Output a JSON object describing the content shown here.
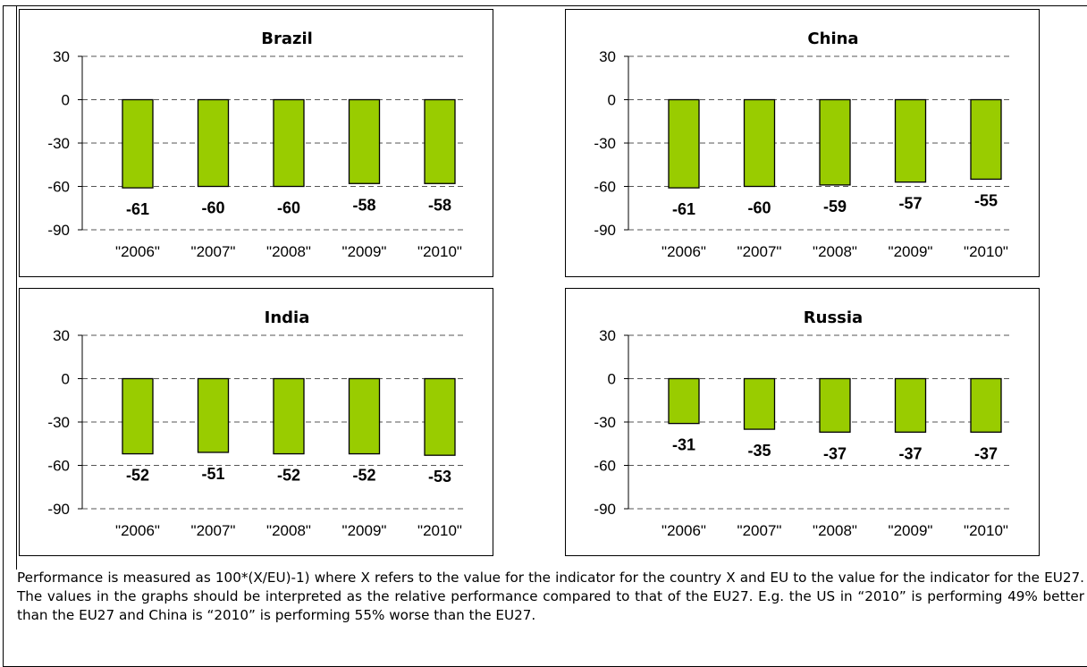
{
  "colors": {
    "bar_fill": "#99cc00",
    "bar_stroke": "#000000",
    "gridline": "#555555"
  },
  "chart_data": [
    {
      "type": "bar",
      "title": "Brazil",
      "categories": [
        "\"2006\"",
        "\"2007\"",
        "\"2008\"",
        "\"2009\"",
        "\"2010\""
      ],
      "values": [
        -61,
        -60,
        -60,
        -58,
        -58
      ],
      "yticks": [
        "30",
        "0",
        "-30",
        "-60",
        "-90"
      ],
      "ylim": [
        -90,
        30
      ],
      "grid": true
    },
    {
      "type": "bar",
      "title": "China",
      "categories": [
        "\"2006\"",
        "\"2007\"",
        "\"2008\"",
        "\"2009\"",
        "\"2010\""
      ],
      "values": [
        -61,
        -60,
        -59,
        -57,
        -55
      ],
      "yticks": [
        "30",
        "0",
        "-30",
        "-60",
        "-90"
      ],
      "ylim": [
        -90,
        30
      ],
      "grid": true
    },
    {
      "type": "bar",
      "title": "India",
      "categories": [
        "\"2006\"",
        "\"2007\"",
        "\"2008\"",
        "\"2009\"",
        "\"2010\""
      ],
      "values": [
        -52,
        -51,
        -52,
        -52,
        -53
      ],
      "yticks": [
        "30",
        "0",
        "-30",
        "-60",
        "-90"
      ],
      "ylim": [
        -90,
        30
      ],
      "grid": true
    },
    {
      "type": "bar",
      "title": "Russia",
      "categories": [
        "\"2006\"",
        "\"2007\"",
        "\"2008\"",
        "\"2009\"",
        "\"2010\""
      ],
      "values": [
        -31,
        -35,
        -37,
        -37,
        -37
      ],
      "yticks": [
        "30",
        "0",
        "-30",
        "-60",
        "-90"
      ],
      "ylim": [
        -90,
        30
      ],
      "grid": true
    }
  ],
  "footnote": "Performance is measured as 100*(X/EU)-1) where X refers to the value for the indicator for the country X and EU to the value for the indicator for the EU27. The values in the graphs should be interpreted as the relative performance compared to that of the EU27. E.g. the US in “2010” is performing 49% better than the EU27 and China is “2010” is performing 55% worse than the EU27."
}
